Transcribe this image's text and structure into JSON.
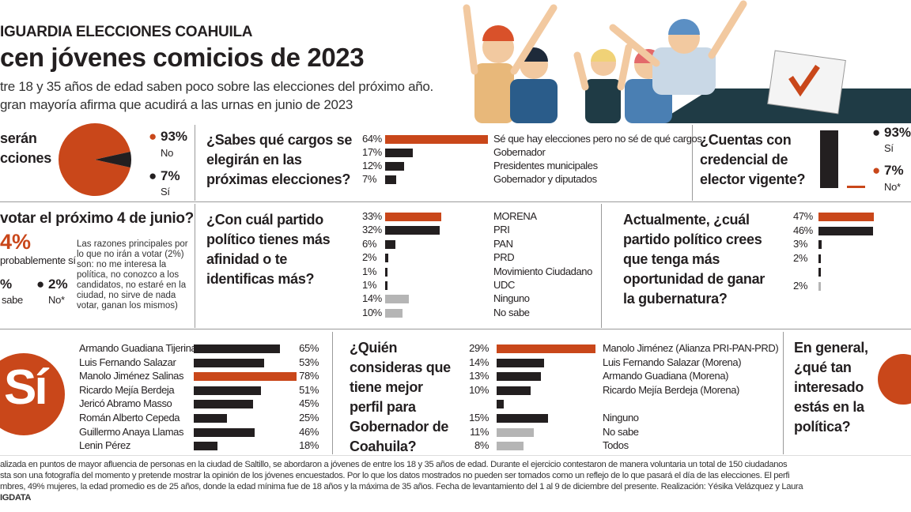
{
  "header": {
    "kicker": "IGUARDIA ELECCIONES COAHUILA",
    "title": "cen jóvenes comicios de 2023",
    "subtitle_line1": "tre 18 y 35 años de edad saben poco sobre las elecciones del próximo año.",
    "subtitle_line2": "gran mayoría afirma que acudirá a las urnas en junio de 2023"
  },
  "colors": {
    "accent": "#c9471a",
    "dark": "#231f20",
    "muted": "#b5b5b5",
    "box": "#1f3b45"
  },
  "chart_data": [
    {
      "id": "when-elections",
      "type": "pie",
      "title": "serán\ncciones",
      "title_line1": "serán",
      "title_line2": "cciones",
      "slices": [
        {
          "name": "No",
          "pct_label": "93%",
          "value": 93,
          "color": "#c9471a"
        },
        {
          "name": "Sí",
          "pct_label": "7%",
          "value": 7,
          "color": "#231f20"
        }
      ]
    },
    {
      "id": "cargos",
      "type": "bar",
      "title": "¿Sabes qué cargos se elegirán en las próximas elecciones?",
      "categories": [
        "Sé que hay elecciones pero no sé de qué cargos",
        "Gobernador",
        "Presidentes municipales",
        "Gobernador y diputados"
      ],
      "pct_labels": [
        "64%",
        "17%",
        "12%",
        "7%"
      ],
      "values": [
        64,
        17,
        12,
        7
      ],
      "colors": [
        "#c9471a",
        "#231f20",
        "#231f20",
        "#231f20"
      ]
    },
    {
      "id": "credencial",
      "type": "bar",
      "title": "¿Cuentas con credencial de elector vigente?",
      "categories": [
        "Sí",
        "No*"
      ],
      "pct_labels": [
        "93%",
        "7%"
      ],
      "values": [
        93,
        7
      ],
      "colors": [
        "#231f20",
        "#c9471a"
      ]
    },
    {
      "id": "votar",
      "type": "table",
      "title": "votar el próximo 4 de junio?",
      "main_pct": "4%",
      "main_label": "probablemente sí",
      "second_pct": "%",
      "second_label": "sabe",
      "no_pct": "2%",
      "no_label": "No*",
      "note": "Las razones principales por lo que no irán a votar (2%) son: no me interesa la política, no conozco a los candidatos, no estaré en la ciudad, no sirve de nada votar, ganan los mismos)"
    },
    {
      "id": "afinidad",
      "type": "bar",
      "title": "¿Con cuál partido político tienes más afinidad o te identificas más?",
      "categories": [
        "MORENA",
        "PRI",
        "PAN",
        "PRD",
        "Movimiento Ciudadano",
        "UDC",
        "Ninguno",
        "No sabe"
      ],
      "pct_labels": [
        "33%",
        "32%",
        "6%",
        "2%",
        "1%",
        "1%",
        "14%",
        "10%"
      ],
      "values": [
        33,
        32,
        6,
        2,
        1,
        1,
        14,
        10
      ],
      "colors": [
        "#c9471a",
        "#231f20",
        "#231f20",
        "#231f20",
        "#231f20",
        "#231f20",
        "#b5b5b5",
        "#b5b5b5"
      ]
    },
    {
      "id": "gubernatura",
      "type": "bar",
      "title": "Actualmente, ¿cuál partido político crees que tenga más oportunidad de ganar la gubernatura?",
      "categories": [
        "",
        "",
        "",
        "",
        "",
        ""
      ],
      "pct_labels": [
        "47%",
        "46%",
        "3%",
        "2%",
        "",
        "2%"
      ],
      "values": [
        47,
        46,
        3,
        2,
        1,
        2
      ],
      "colors": [
        "#c9471a",
        "#231f20",
        "#231f20",
        "#231f20",
        "#231f20",
        "#b5b5b5"
      ]
    },
    {
      "id": "conoces",
      "type": "bar",
      "title": "Sí",
      "categories": [
        "Armando Guadiana Tijerina",
        "Luis Fernando Salazar",
        "Manolo Jiménez Salinas",
        "Ricardo Mejía Berdeja",
        "Jericó Abramo Masso",
        "Román Alberto Cepeda",
        "Guillermo Anaya Llamas",
        "Lenin Pérez"
      ],
      "pct_labels": [
        "65%",
        "53%",
        "78%",
        "51%",
        "45%",
        "25%",
        "46%",
        "18%"
      ],
      "values": [
        65,
        53,
        78,
        51,
        45,
        25,
        46,
        18
      ],
      "colors": [
        "#231f20",
        "#231f20",
        "#c9471a",
        "#231f20",
        "#231f20",
        "#231f20",
        "#231f20",
        "#231f20"
      ]
    },
    {
      "id": "perfil",
      "type": "bar",
      "title": "¿Quién consideras que tiene mejor perfil para Gobernador de Coahuila?",
      "categories": [
        "Manolo Jiménez (Alianza PRI-PAN-PRD)",
        "Luis Fernando Salazar (Morena)",
        "Armando Guadiana (Morena)",
        "Ricardo Mejía Berdeja (Morena)",
        "",
        "Ninguno",
        "No sabe",
        "Todos"
      ],
      "pct_labels": [
        "29%",
        "14%",
        "13%",
        "10%",
        "",
        "15%",
        "11%",
        "8%"
      ],
      "values": [
        29,
        14,
        13,
        10,
        2,
        15,
        11,
        8
      ],
      "colors": [
        "#c9471a",
        "#231f20",
        "#231f20",
        "#231f20",
        "#231f20",
        "#231f20",
        "#b5b5b5",
        "#b5b5b5"
      ]
    }
  ],
  "interest": {
    "title": "En general, ¿qué tan interesado estás en la política?"
  },
  "footer": {
    "line1": "alizada en puntos de mayor afluencia de personas en la ciudad de Saltillo, se abordaron a jóvenes de entre los 18 y 35 años de edad. Durante el ejercicio contestaron de manera voluntaria un total de 150 ciudadanos",
    "line2": "sta son una fotografía del momento y pretende mostrar la opinión de los jóvenes encuestados. Por lo que los datos mostrados no pueden ser tomados como un reflejo de lo que pasará el día de las elecciones. El perfi",
    "line3": "mbres, 49% mujeres, la edad promedio es de 25 años, donde la edad mínima fue de 18 años y la máxima de 35 años. Fecha de levantamiento del 1 al 9 de diciembre del presente. Realización: Yésika Velázquez y Laura",
    "credit": "IGDATA"
  }
}
